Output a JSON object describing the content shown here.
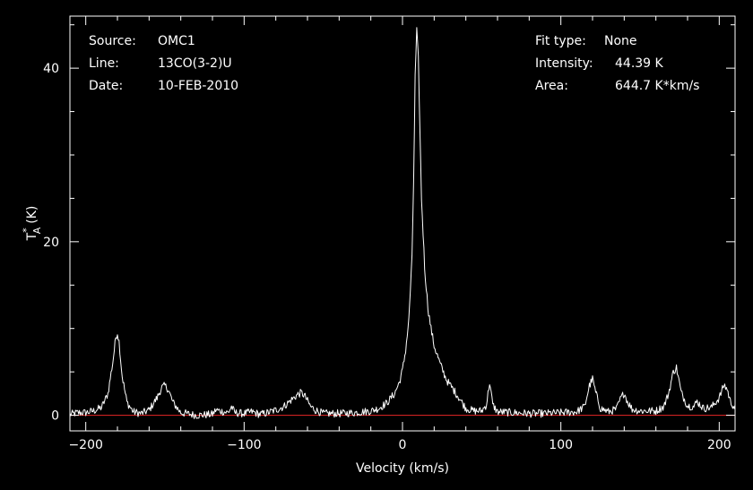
{
  "info_left": {
    "source_label": "Source:",
    "source_value": "OMC1",
    "line_label": "Line:",
    "line_value": "13CO(3-2)U",
    "date_label": "Date:",
    "date_value": "10-FEB-2010"
  },
  "info_right": {
    "fit_label": "Fit type:",
    "fit_value": "None",
    "intensity_label": "Intensity:",
    "intensity_value": "44.39 K",
    "area_label": "Area:",
    "area_value": "644.7 K*km/s"
  },
  "chart_data": {
    "type": "line",
    "xlabel": "Velocity (km/s)",
    "ylabel": "T",
    "ylabel_sub": "A",
    "ylabel_sup": "*",
    "ylabel_unit": "(K)",
    "xlim": [
      -210,
      210
    ],
    "ylim": [
      -1.8,
      46
    ],
    "x_ticks": [
      -200,
      -100,
      0,
      100,
      200
    ],
    "y_ticks": [
      0,
      20,
      40
    ],
    "grid": false,
    "baseline": 0,
    "colors": {
      "background": "#000000",
      "axes": "#ffffff",
      "spectrum": "#ffffff",
      "baseline": "#cc2222"
    },
    "series": [
      {
        "x": [
          -210,
          -205,
          -200,
          -195,
          -190,
          -186,
          -183,
          -181,
          -180,
          -179,
          -177,
          -174,
          -170,
          -165,
          -160,
          -155,
          -152,
          -150,
          -148,
          -145,
          -140,
          -130,
          -120,
          -118,
          -110,
          -108,
          -106,
          -100,
          -95,
          -90,
          -85,
          -80,
          -75,
          -70,
          -66,
          -64,
          -62,
          -58,
          -55,
          -50,
          -40,
          -30,
          -20,
          -15,
          -10,
          -5,
          -2,
          0,
          2,
          4,
          6,
          7,
          8,
          9,
          10,
          11,
          12,
          14,
          16,
          18,
          20,
          24,
          28,
          32,
          35,
          40,
          45,
          50,
          53,
          55,
          57,
          60,
          70,
          80,
          90,
          100,
          110,
          115,
          118,
          120,
          122,
          125,
          130,
          135,
          138,
          140,
          142,
          145,
          150,
          160,
          165,
          168,
          171,
          173,
          176,
          180,
          184,
          186,
          190,
          195,
          200,
          203,
          205,
          207,
          210
        ],
        "values": [
          0.1,
          0.3,
          0.3,
          0.5,
          0.9,
          2.5,
          6.0,
          9.0,
          9.5,
          8.5,
          4.5,
          1.5,
          0.4,
          0.2,
          0.6,
          2.0,
          3.2,
          3.4,
          3.0,
          1.5,
          0.3,
          0.0,
          0.1,
          0.6,
          0.3,
          1.0,
          0.3,
          0.2,
          0.4,
          0.1,
          0.3,
          0.6,
          1.0,
          1.8,
          2.4,
          2.6,
          2.3,
          1.0,
          0.6,
          0.2,
          0.2,
          0.3,
          0.5,
          0.8,
          1.4,
          2.5,
          3.8,
          5.2,
          7.5,
          11.0,
          18.0,
          27.0,
          39.0,
          44.3,
          41.0,
          33.0,
          25.0,
          17.0,
          12.5,
          10.0,
          8.0,
          5.8,
          4.0,
          3.0,
          2.2,
          0.8,
          0.5,
          0.5,
          1.2,
          3.8,
          1.2,
          0.4,
          0.3,
          0.2,
          0.2,
          0.3,
          0.4,
          1.0,
          3.4,
          4.2,
          2.6,
          0.8,
          0.4,
          0.7,
          2.0,
          2.6,
          1.6,
          0.7,
          0.5,
          0.5,
          1.0,
          2.5,
          5.0,
          5.5,
          2.6,
          1.1,
          1.0,
          1.6,
          0.8,
          0.9,
          2.0,
          3.5,
          3.0,
          1.6,
          0.8
        ]
      }
    ]
  }
}
